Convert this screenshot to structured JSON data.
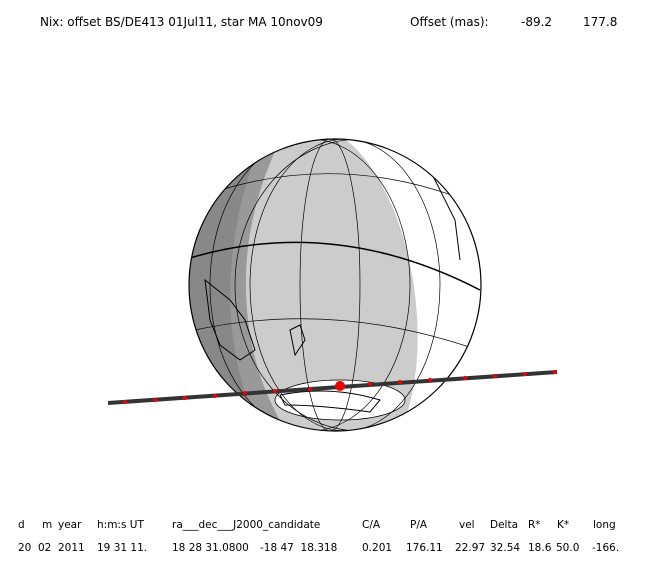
{
  "header": {
    "title": "Nix: offset BS/DE413 01Jul11, star MA 10nov09",
    "offset_label": "Offset (mas):",
    "offset_values": [
      "-89.2",
      "177.8"
    ]
  },
  "table": {
    "columns": [
      "d",
      "m",
      "year",
      "h:m:s UT",
      "ra___dec___J2000_candidate",
      "C/A",
      "P/A",
      "vel",
      "Delta",
      "R*",
      "K*",
      "long"
    ],
    "row": [
      "20",
      "02",
      "2011",
      "19 31 11.",
      "18 28 31.0800",
      "-18 47  18.318",
      "0.201",
      "176.11",
      "22.97",
      "32.54",
      "18.6",
      "50.0",
      "-166."
    ]
  }
}
